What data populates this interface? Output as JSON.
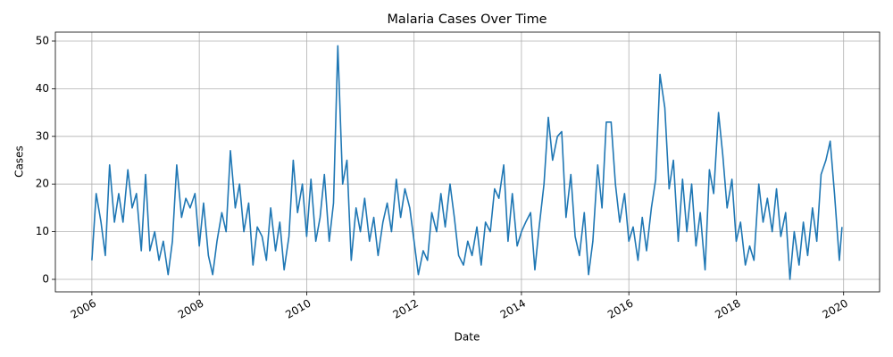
{
  "chart_data": {
    "type": "line",
    "title": "Malaria Cases Over Time",
    "x_label": "Date",
    "y_label": "Cases",
    "color": "#1f77b4",
    "grid": true,
    "xlim": [
      2005.32,
      2020.67
    ],
    "ylim": [
      -2.62,
      51.87
    ],
    "xticks": [
      2006,
      2008,
      2010,
      2012,
      2014,
      2016,
      2018,
      2020
    ],
    "yticks": [
      0,
      10,
      20,
      30,
      40,
      50
    ],
    "x": [
      2006,
      2006.08,
      2006.17,
      2006.25,
      2006.33,
      2006.42,
      2006.5,
      2006.58,
      2006.67,
      2006.75,
      2006.83,
      2006.92,
      2007,
      2007.08,
      2007.17,
      2007.25,
      2007.33,
      2007.42,
      2007.5,
      2007.58,
      2007.67,
      2007.75,
      2007.83,
      2007.92,
      2008,
      2008.08,
      2008.17,
      2008.25,
      2008.33,
      2008.42,
      2008.5,
      2008.58,
      2008.67,
      2008.75,
      2008.83,
      2008.92,
      2009,
      2009.08,
      2009.17,
      2009.25,
      2009.33,
      2009.42,
      2009.5,
      2009.58,
      2009.67,
      2009.75,
      2009.83,
      2009.92,
      2010,
      2010.08,
      2010.17,
      2010.25,
      2010.33,
      2010.42,
      2010.5,
      2010.58,
      2010.67,
      2010.75,
      2010.83,
      2010.92,
      2011,
      2011.08,
      2011.17,
      2011.25,
      2011.33,
      2011.42,
      2011.5,
      2011.58,
      2011.67,
      2011.75,
      2011.83,
      2011.92,
      2012,
      2012.08,
      2012.17,
      2012.25,
      2012.33,
      2012.42,
      2012.5,
      2012.58,
      2012.67,
      2012.75,
      2012.83,
      2012.92,
      2013,
      2013.08,
      2013.17,
      2013.25,
      2013.33,
      2013.42,
      2013.5,
      2013.58,
      2013.67,
      2013.75,
      2013.83,
      2013.92,
      2014,
      2014.08,
      2014.17,
      2014.25,
      2014.33,
      2014.42,
      2014.5,
      2014.58,
      2014.67,
      2014.75,
      2014.83,
      2014.92,
      2015,
      2015.08,
      2015.17,
      2015.25,
      2015.33,
      2015.42,
      2015.5,
      2015.58,
      2015.67,
      2015.75,
      2015.83,
      2015.92,
      2016,
      2016.08,
      2016.17,
      2016.25,
      2016.33,
      2016.42,
      2016.5,
      2016.58,
      2016.67,
      2016.75,
      2016.83,
      2016.92,
      2017,
      2017.08,
      2017.17,
      2017.25,
      2017.33,
      2017.42,
      2017.5,
      2017.58,
      2017.67,
      2017.75,
      2017.83,
      2017.92,
      2018,
      2018.08,
      2018.17,
      2018.25,
      2018.33,
      2018.42,
      2018.5,
      2018.58,
      2018.67,
      2018.75,
      2018.83,
      2018.92,
      2019,
      2019.08,
      2019.17,
      2019.25,
      2019.33,
      2019.42,
      2019.5,
      2019.58,
      2019.67,
      2019.75,
      2019.83,
      2019.92,
      2019.97
    ],
    "values": [
      4,
      18,
      12,
      5,
      24,
      12,
      18,
      12,
      23,
      15,
      18,
      6,
      22,
      6,
      10,
      4,
      8,
      1,
      8,
      24,
      13,
      17,
      15,
      18,
      7,
      16,
      5,
      1,
      8,
      14,
      10,
      27,
      15,
      20,
      10,
      16,
      3,
      11,
      9,
      4,
      15,
      6,
      12,
      2,
      9,
      25,
      14,
      20,
      9,
      21,
      8,
      13,
      22,
      8,
      16,
      49,
      20,
      25,
      4,
      15,
      10,
      17,
      8,
      13,
      5,
      12,
      16,
      10,
      21,
      13,
      19,
      15,
      8,
      1,
      6,
      4,
      14,
      10,
      18,
      11,
      20,
      13,
      5,
      3,
      8,
      5,
      11,
      3,
      12,
      10,
      19,
      17,
      24,
      8,
      18,
      7,
      10,
      12,
      14,
      2,
      11,
      20,
      34,
      25,
      30,
      31,
      13,
      22,
      9,
      5,
      14,
      1,
      8,
      24,
      15,
      33,
      33,
      20,
      12,
      18,
      8,
      11,
      4,
      13,
      6,
      15,
      21,
      43,
      36,
      19,
      25,
      8,
      21,
      10,
      20,
      7,
      14,
      2,
      23,
      18,
      35,
      26,
      15,
      21,
      8,
      12,
      3,
      7,
      4,
      20,
      12,
      17,
      10,
      19,
      9,
      14,
      0,
      10,
      3,
      12,
      5,
      15,
      8,
      22,
      25,
      29,
      18,
      4,
      11
    ]
  }
}
